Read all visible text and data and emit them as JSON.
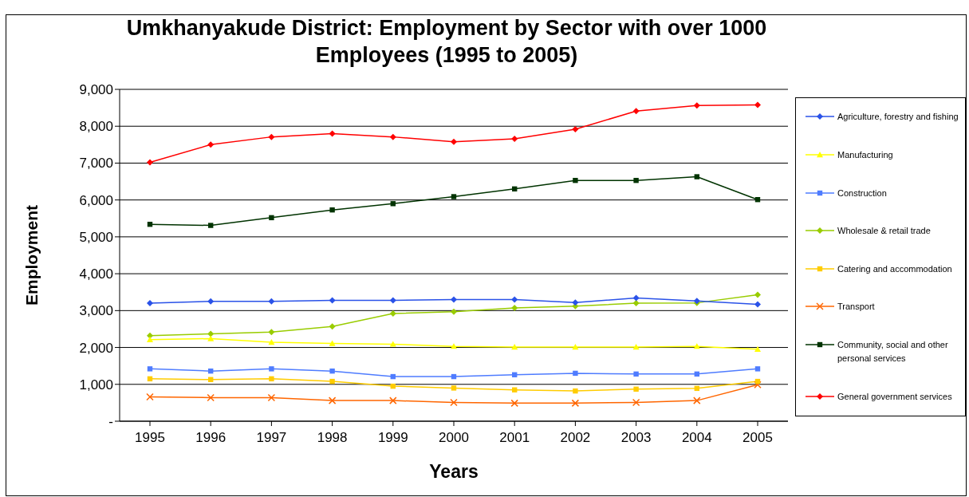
{
  "chart_data": {
    "type": "line",
    "title": "Umkhanyakude District: Employment by Sector with over 1000 Employees (1995 to 2005)",
    "xlabel": "Years",
    "ylabel": "Employment",
    "categories": [
      "1995",
      "1996",
      "1997",
      "1998",
      "1999",
      "2000",
      "2001",
      "2002",
      "2003",
      "2004",
      "2005"
    ],
    "series": [
      {
        "name": "Agriculture, forestry and fishing",
        "color": "#2a52e8",
        "marker": "diamond",
        "values": [
          3200,
          3250,
          3250,
          3280,
          3280,
          3300,
          3300,
          3220,
          3340,
          3260,
          3170
        ]
      },
      {
        "name": "Manufacturing",
        "color": "#ffff00",
        "marker": "triangle",
        "values": [
          2210,
          2240,
          2140,
          2110,
          2090,
          2030,
          2010,
          2010,
          2010,
          2030,
          1950
        ]
      },
      {
        "name": "Construction",
        "color": "#4f7cff",
        "marker": "square",
        "values": [
          1420,
          1360,
          1420,
          1360,
          1210,
          1210,
          1260,
          1300,
          1280,
          1280,
          1420
        ]
      },
      {
        "name": "Wholesale & retail trade",
        "color": "#99cc00",
        "marker": "diamond",
        "values": [
          2320,
          2370,
          2420,
          2570,
          2920,
          2970,
          3070,
          3120,
          3200,
          3210,
          3430
        ]
      },
      {
        "name": "Catering and accommodation",
        "color": "#ffcc00",
        "marker": "square",
        "values": [
          1150,
          1130,
          1150,
          1080,
          950,
          900,
          850,
          820,
          870,
          890,
          1080
        ]
      },
      {
        "name": "Transport",
        "color": "#ff6600",
        "marker": "cross",
        "values": [
          660,
          640,
          640,
          560,
          560,
          510,
          490,
          490,
          510,
          560,
          990
        ]
      },
      {
        "name": "Community, social and other personal services",
        "color": "#003300",
        "marker": "square",
        "values": [
          5340,
          5310,
          5520,
          5730,
          5900,
          6090,
          6300,
          6530,
          6530,
          6630,
          6010
        ]
      },
      {
        "name": "General government services",
        "color": "#ff0000",
        "marker": "diamond",
        "values": [
          7020,
          7500,
          7710,
          7800,
          7710,
          7580,
          7660,
          7920,
          8410,
          8560,
          8580
        ]
      }
    ],
    "ylim": [
      0,
      9000
    ],
    "yticks": [
      {
        "value": 0,
        "label": "-"
      },
      {
        "value": 1000,
        "label": "1,000"
      },
      {
        "value": 2000,
        "label": "2,000"
      },
      {
        "value": 3000,
        "label": "3,000"
      },
      {
        "value": 4000,
        "label": "4,000"
      },
      {
        "value": 5000,
        "label": "5,000"
      },
      {
        "value": 6000,
        "label": "6,000"
      },
      {
        "value": 7000,
        "label": "7,000"
      },
      {
        "value": 8000,
        "label": "8,000"
      },
      {
        "value": 9000,
        "label": "9,000"
      }
    ],
    "grid": "y",
    "legend": "right"
  }
}
